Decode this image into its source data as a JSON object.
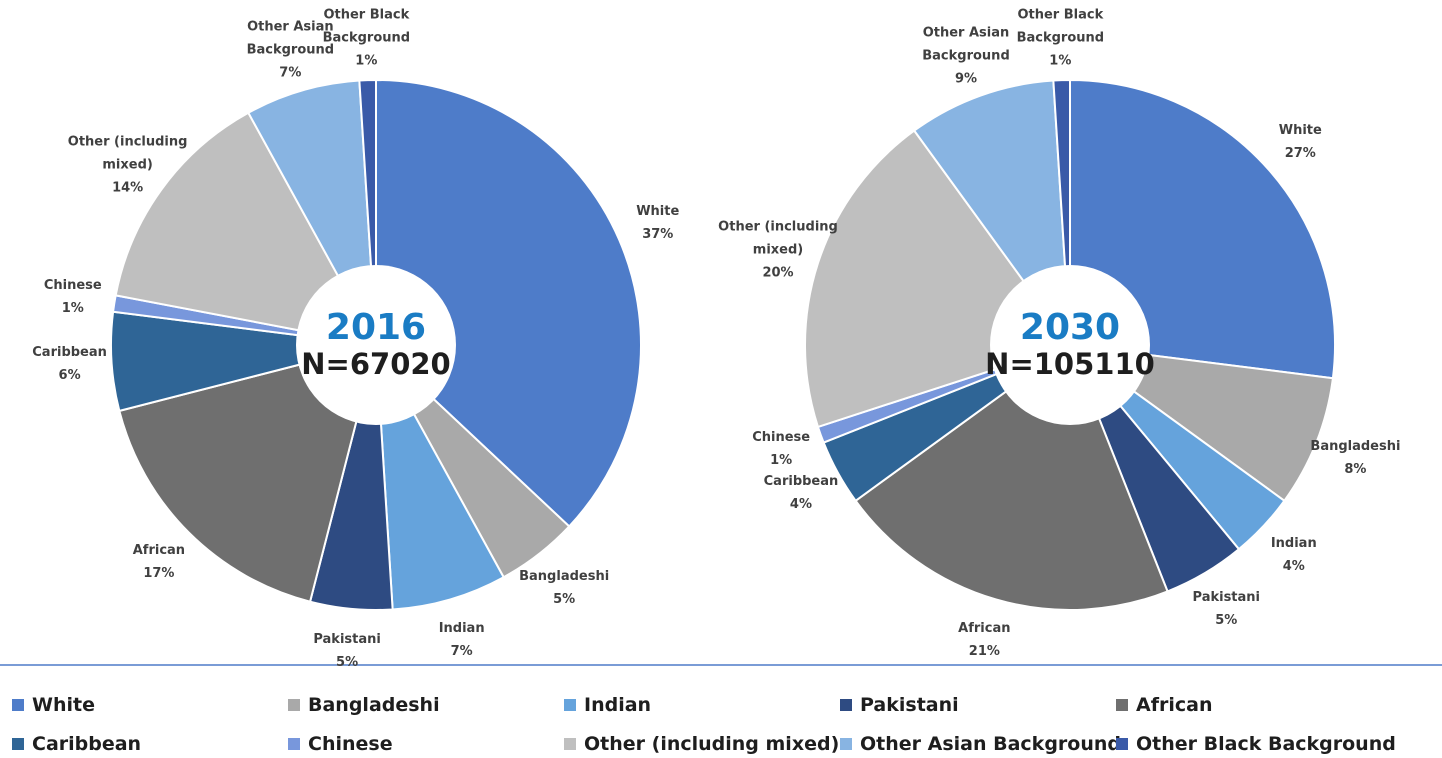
{
  "chart_data": [
    {
      "type": "pie",
      "center_title": "2016",
      "center_subtitle": "N=67020",
      "categories": [
        "White",
        "Bangladeshi",
        "Indian",
        "Pakistani",
        "African",
        "Caribbean",
        "Chinese",
        "Other (including mixed)",
        "Other Asian Background",
        "Other Black Background"
      ],
      "values": [
        37,
        5,
        7,
        5,
        17,
        6,
        1,
        14,
        7,
        1
      ],
      "value_labels": [
        "37%",
        "5%",
        "7%",
        "5%",
        "17%",
        "6%",
        "1%",
        "14%",
        "7%",
        "1%"
      ],
      "colors": [
        "#4e7cc9",
        "#a9a9a9",
        "#65a3dc",
        "#2e4b82",
        "#6f6f6f",
        "#2f6596",
        "#7897dc",
        "#bfbfbf",
        "#88b4e2",
        "#3a5aa8"
      ]
    },
    {
      "type": "pie",
      "center_title": "2030",
      "center_subtitle": "N=105110",
      "categories": [
        "White",
        "Bangladeshi",
        "Indian",
        "Pakistani",
        "African",
        "Caribbean",
        "Chinese",
        "Other (including mixed)",
        "Other Asian Background",
        "Other Black Background"
      ],
      "values": [
        27,
        8,
        4,
        5,
        21,
        4,
        1,
        20,
        9,
        1
      ],
      "value_labels": [
        "27%",
        "8%",
        "4%",
        "5%",
        "21%",
        "4%",
        "1%",
        "20%",
        "9%",
        "1%"
      ],
      "colors": [
        "#4e7cc9",
        "#a9a9a9",
        "#65a3dc",
        "#2e4b82",
        "#6f6f6f",
        "#2f6596",
        "#7897dc",
        "#bfbfbf",
        "#88b4e2",
        "#3a5aa8"
      ]
    }
  ]
}
